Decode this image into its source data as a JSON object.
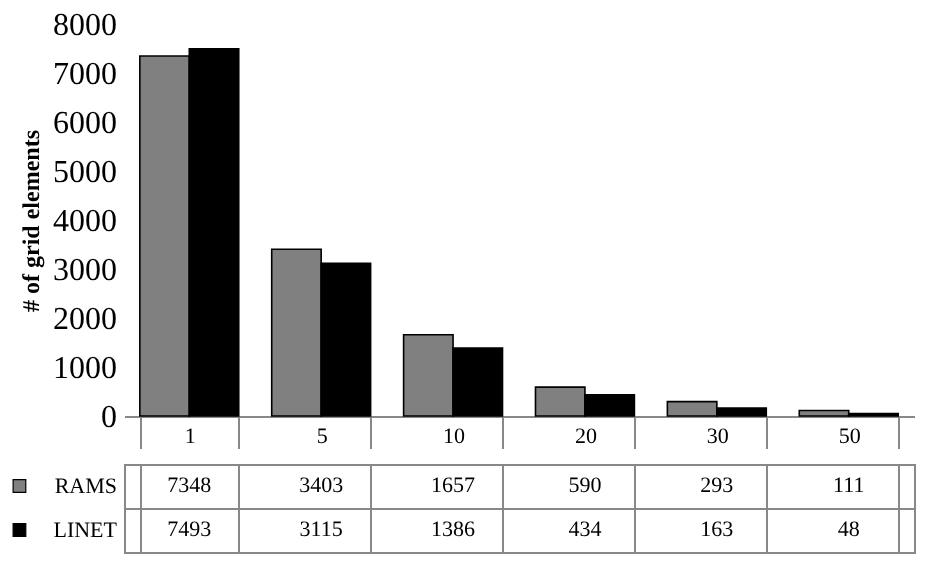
{
  "chart_data": {
    "type": "bar",
    "ylabel": "# of grid elements",
    "categories": [
      "1",
      "5",
      "10",
      "20",
      "30",
      "50"
    ],
    "series": [
      {
        "name": "RAMS",
        "color": "#808080",
        "values": [
          7348,
          3403,
          1657,
          590,
          293,
          111
        ]
      },
      {
        "name": "LINET",
        "color": "#000000",
        "values": [
          7493,
          3115,
          1386,
          434,
          163,
          48
        ]
      }
    ],
    "ylim": [
      0,
      8000
    ],
    "yticks": [
      0,
      1000,
      2000,
      3000,
      4000,
      5000,
      6000,
      7000,
      8000
    ],
    "grid": false,
    "data_labels": true,
    "legend": "left"
  }
}
